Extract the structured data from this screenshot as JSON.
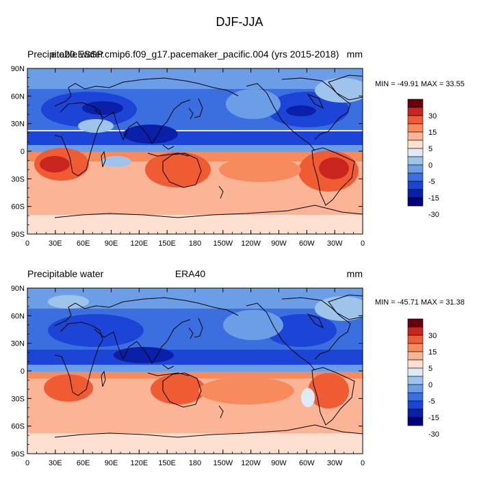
{
  "figure": {
    "title": "DJF-JJA"
  },
  "chart_data": [
    {
      "type": "heatmap",
      "variable_label": "Precipitable water",
      "case_label": "e.e20.ESSP.cmip6.f09_g17.pacemaker_pacific.004 (yrs 2015-2018)",
      "units": "mm",
      "min_max_text": "MIN = -49.91 MAX =  33.55",
      "min": -49.91,
      "max": 33.55,
      "projection": "cylindrical equidistant, centered 180",
      "x_tick_labels": [
        "0",
        "30E",
        "60E",
        "90E",
        "120E",
        "150E",
        "180",
        "150W",
        "120W",
        "90W",
        "60W",
        "30W",
        "0"
      ],
      "y_tick_labels": [
        "90N",
        "60N",
        "30N",
        "0",
        "30S",
        "60S",
        "90S"
      ],
      "colorbar_labels": [
        "30",
        "15",
        "5",
        "0",
        "-5",
        "-15",
        "-30"
      ],
      "colorbar_colors": [
        "#67000d",
        "#c8251f",
        "#ef5b33",
        "#f88b5e",
        "#fbb596",
        "#fde0d0",
        "#deebf7",
        "#9fc4ec",
        "#6c9ee8",
        "#3b6fe0",
        "#1c44d6",
        "#0a20a8",
        "#000078"
      ]
    },
    {
      "type": "heatmap",
      "variable_label": "Precipitable water",
      "case_label": "ERA40",
      "units": "mm",
      "min_max_text": "MIN = -45.71 MAX =  31.38",
      "min": -45.71,
      "max": 31.38,
      "projection": "cylindrical equidistant, centered 180",
      "x_tick_labels": [
        "0",
        "30E",
        "60E",
        "90E",
        "120E",
        "150E",
        "180",
        "150W",
        "120W",
        "90W",
        "60W",
        "30W",
        "0"
      ],
      "y_tick_labels": [
        "90N",
        "60N",
        "30N",
        "0",
        "30S",
        "60S",
        "90S"
      ],
      "colorbar_labels": [
        "30",
        "15",
        "5",
        "0",
        "-5",
        "-15",
        "-30"
      ],
      "colorbar_colors": [
        "#67000d",
        "#c8251f",
        "#ef5b33",
        "#f88b5e",
        "#fbb596",
        "#fde0d0",
        "#deebf7",
        "#9fc4ec",
        "#6c9ee8",
        "#3b6fe0",
        "#1c44d6",
        "#0a20a8",
        "#000078"
      ]
    }
  ]
}
